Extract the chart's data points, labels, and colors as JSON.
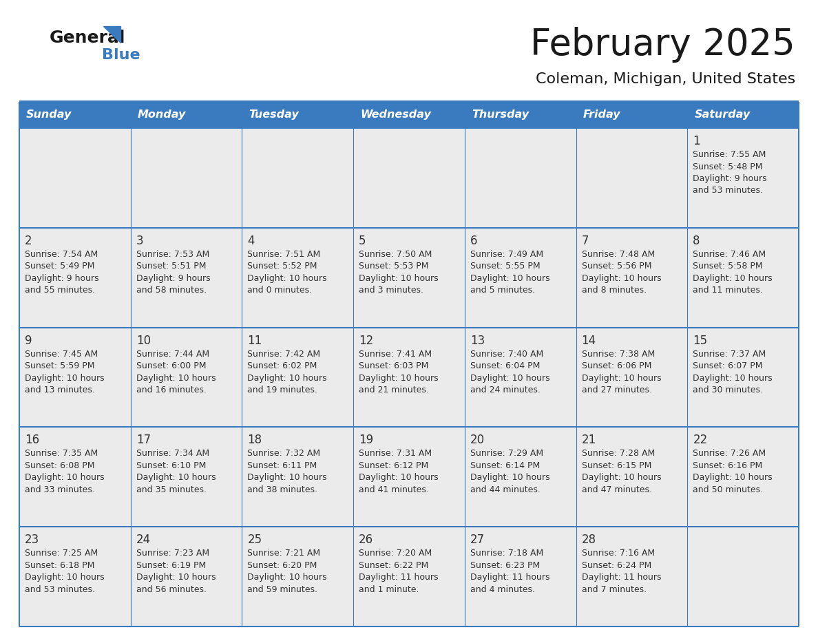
{
  "title": "February 2025",
  "subtitle": "Coleman, Michigan, United States",
  "header_bg_color": "#3a7abf",
  "header_text_color": "#ffffff",
  "cell_bg_color": "#ebebeb",
  "border_color": "#3a7abf",
  "day_number_color": "#333333",
  "cell_text_color": "#333333",
  "title_color": "#1a1a1a",
  "subtitle_color": "#1a1a1a",
  "days_of_week": [
    "Sunday",
    "Monday",
    "Tuesday",
    "Wednesday",
    "Thursday",
    "Friday",
    "Saturday"
  ],
  "logo_color_general": "#1a1a1a",
  "logo_color_blue": "#3a7abf",
  "calendar_data": [
    [
      {
        "day": "",
        "sunrise": "",
        "sunset": "",
        "daylight": ""
      },
      {
        "day": "",
        "sunrise": "",
        "sunset": "",
        "daylight": ""
      },
      {
        "day": "",
        "sunrise": "",
        "sunset": "",
        "daylight": ""
      },
      {
        "day": "",
        "sunrise": "",
        "sunset": "",
        "daylight": ""
      },
      {
        "day": "",
        "sunrise": "",
        "sunset": "",
        "daylight": ""
      },
      {
        "day": "",
        "sunrise": "",
        "sunset": "",
        "daylight": ""
      },
      {
        "day": "1",
        "sunrise": "7:55 AM",
        "sunset": "5:48 PM",
        "daylight": "9 hours and 53 minutes."
      }
    ],
    [
      {
        "day": "2",
        "sunrise": "7:54 AM",
        "sunset": "5:49 PM",
        "daylight": "9 hours and 55 minutes."
      },
      {
        "day": "3",
        "sunrise": "7:53 AM",
        "sunset": "5:51 PM",
        "daylight": "9 hours and 58 minutes."
      },
      {
        "day": "4",
        "sunrise": "7:51 AM",
        "sunset": "5:52 PM",
        "daylight": "10 hours and 0 minutes."
      },
      {
        "day": "5",
        "sunrise": "7:50 AM",
        "sunset": "5:53 PM",
        "daylight": "10 hours and 3 minutes."
      },
      {
        "day": "6",
        "sunrise": "7:49 AM",
        "sunset": "5:55 PM",
        "daylight": "10 hours and 5 minutes."
      },
      {
        "day": "7",
        "sunrise": "7:48 AM",
        "sunset": "5:56 PM",
        "daylight": "10 hours and 8 minutes."
      },
      {
        "day": "8",
        "sunrise": "7:46 AM",
        "sunset": "5:58 PM",
        "daylight": "10 hours and 11 minutes."
      }
    ],
    [
      {
        "day": "9",
        "sunrise": "7:45 AM",
        "sunset": "5:59 PM",
        "daylight": "10 hours and 13 minutes."
      },
      {
        "day": "10",
        "sunrise": "7:44 AM",
        "sunset": "6:00 PM",
        "daylight": "10 hours and 16 minutes."
      },
      {
        "day": "11",
        "sunrise": "7:42 AM",
        "sunset": "6:02 PM",
        "daylight": "10 hours and 19 minutes."
      },
      {
        "day": "12",
        "sunrise": "7:41 AM",
        "sunset": "6:03 PM",
        "daylight": "10 hours and 21 minutes."
      },
      {
        "day": "13",
        "sunrise": "7:40 AM",
        "sunset": "6:04 PM",
        "daylight": "10 hours and 24 minutes."
      },
      {
        "day": "14",
        "sunrise": "7:38 AM",
        "sunset": "6:06 PM",
        "daylight": "10 hours and 27 minutes."
      },
      {
        "day": "15",
        "sunrise": "7:37 AM",
        "sunset": "6:07 PM",
        "daylight": "10 hours and 30 minutes."
      }
    ],
    [
      {
        "day": "16",
        "sunrise": "7:35 AM",
        "sunset": "6:08 PM",
        "daylight": "10 hours and 33 minutes."
      },
      {
        "day": "17",
        "sunrise": "7:34 AM",
        "sunset": "6:10 PM",
        "daylight": "10 hours and 35 minutes."
      },
      {
        "day": "18",
        "sunrise": "7:32 AM",
        "sunset": "6:11 PM",
        "daylight": "10 hours and 38 minutes."
      },
      {
        "day": "19",
        "sunrise": "7:31 AM",
        "sunset": "6:12 PM",
        "daylight": "10 hours and 41 minutes."
      },
      {
        "day": "20",
        "sunrise": "7:29 AM",
        "sunset": "6:14 PM",
        "daylight": "10 hours and 44 minutes."
      },
      {
        "day": "21",
        "sunrise": "7:28 AM",
        "sunset": "6:15 PM",
        "daylight": "10 hours and 47 minutes."
      },
      {
        "day": "22",
        "sunrise": "7:26 AM",
        "sunset": "6:16 PM",
        "daylight": "10 hours and 50 minutes."
      }
    ],
    [
      {
        "day": "23",
        "sunrise": "7:25 AM",
        "sunset": "6:18 PM",
        "daylight": "10 hours and 53 minutes."
      },
      {
        "day": "24",
        "sunrise": "7:23 AM",
        "sunset": "6:19 PM",
        "daylight": "10 hours and 56 minutes."
      },
      {
        "day": "25",
        "sunrise": "7:21 AM",
        "sunset": "6:20 PM",
        "daylight": "10 hours and 59 minutes."
      },
      {
        "day": "26",
        "sunrise": "7:20 AM",
        "sunset": "6:22 PM",
        "daylight": "11 hours and 1 minute."
      },
      {
        "day": "27",
        "sunrise": "7:18 AM",
        "sunset": "6:23 PM",
        "daylight": "11 hours and 4 minutes."
      },
      {
        "day": "28",
        "sunrise": "7:16 AM",
        "sunset": "6:24 PM",
        "daylight": "11 hours and 7 minutes."
      },
      {
        "day": "",
        "sunrise": "",
        "sunset": "",
        "daylight": ""
      }
    ]
  ]
}
